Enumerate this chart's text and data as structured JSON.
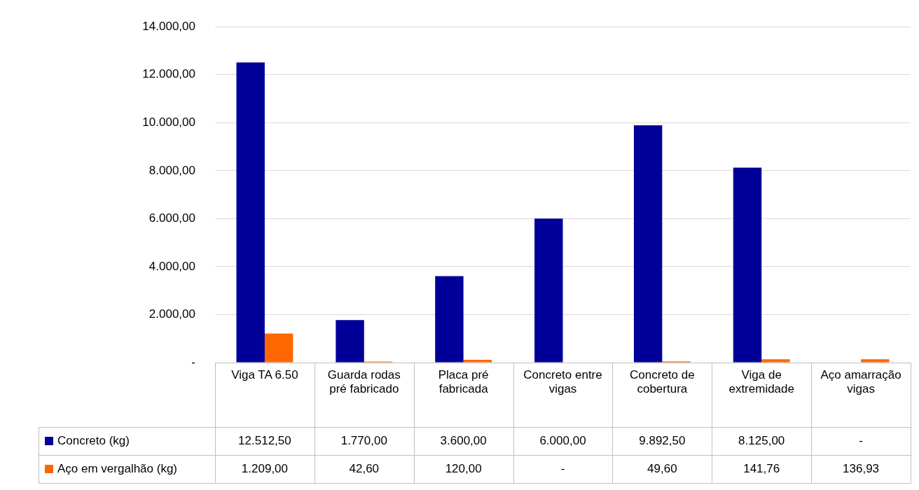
{
  "chart_data": {
    "type": "bar",
    "categories": [
      "Viga TA 6.50",
      "Guarda rodas pré fabricado",
      "Placa pré fabricada",
      "Concreto entre vigas",
      "Concreto de cobertura",
      "Viga de extremidade",
      "Aço amarração vigas"
    ],
    "series": [
      {
        "name": "Concreto (kg)",
        "color": "#000099",
        "values": [
          12512.5,
          1770,
          3600,
          6000,
          9892.5,
          8125,
          null
        ],
        "value_labels": [
          "12.512,50",
          "1.770,00",
          "3.600,00",
          "6.000,00",
          "9.892,50",
          "8.125,00",
          "-"
        ]
      },
      {
        "name": "Aço em vergalhão (kg)",
        "color": "#ff6600",
        "values": [
          1209,
          42.6,
          120,
          null,
          49.6,
          141.76,
          136.93
        ],
        "value_labels": [
          "1.209,00",
          "42,60",
          "120,00",
          "-",
          "49,60",
          "141,76",
          "136,93"
        ]
      }
    ],
    "ylim": [
      0,
      14000
    ],
    "yticks": [
      {
        "value": 0,
        "label": "-"
      },
      {
        "value": 2000,
        "label": "2.000,00"
      },
      {
        "value": 4000,
        "label": "4.000,00"
      },
      {
        "value": 6000,
        "label": "6.000,00"
      },
      {
        "value": 8000,
        "label": "8.000,00"
      },
      {
        "value": 10000,
        "label": "10.000,00"
      },
      {
        "value": 12000,
        "label": "12.000,00"
      },
      {
        "value": 14000,
        "label": "14.000,00"
      }
    ],
    "grid": "y",
    "legend": "bottom",
    "data_labels": true
  }
}
